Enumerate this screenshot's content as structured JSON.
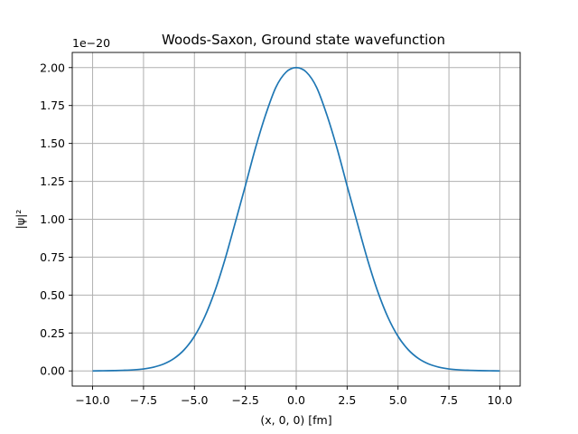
{
  "chart_data": {
    "type": "line",
    "title": "Woods-Saxon, Ground state wavefunction",
    "xlabel": "(x, 0, 0) [fm]",
    "ylabel": "|ψ|²",
    "offset_text": "1e−20",
    "xlim": [
      -11,
      11
    ],
    "ylim": [
      -0.1,
      2.1
    ],
    "grid": true,
    "xticks": [
      -10.0,
      -7.5,
      -5.0,
      -2.5,
      0.0,
      2.5,
      5.0,
      7.5,
      10.0
    ],
    "xtick_labels": [
      "−10.0",
      "−7.5",
      "−5.0",
      "−2.5",
      "0.0",
      "2.5",
      "5.0",
      "7.5",
      "10.0"
    ],
    "yticks": [
      0.0,
      0.25,
      0.5,
      0.75,
      1.0,
      1.25,
      1.5,
      1.75,
      2.0
    ],
    "ytick_labels": [
      "0.00",
      "0.25",
      "0.50",
      "0.75",
      "1.00",
      "1.25",
      "1.50",
      "1.75",
      "2.00"
    ],
    "series": [
      {
        "color": "#1f77b4",
        "x": [
          -10,
          -9.5,
          -9,
          -8.5,
          -8,
          -7.5,
          -7,
          -6.5,
          -6,
          -5.5,
          -5,
          -4.5,
          -4,
          -3.5,
          -3,
          -2.5,
          -2,
          -1.5,
          -1,
          -0.5,
          0,
          0.5,
          1,
          1.5,
          2,
          2.5,
          3,
          3.5,
          4,
          4.5,
          5,
          5.5,
          6,
          6.5,
          7,
          7.5,
          8,
          8.5,
          9,
          9.5,
          10
        ],
        "y": [
          0.0,
          0.001,
          0.002,
          0.004,
          0.007,
          0.013,
          0.025,
          0.046,
          0.082,
          0.14,
          0.228,
          0.355,
          0.525,
          0.735,
          0.975,
          1.22,
          1.47,
          1.69,
          1.87,
          1.97,
          2.0,
          1.97,
          1.87,
          1.69,
          1.47,
          1.22,
          0.975,
          0.735,
          0.525,
          0.355,
          0.228,
          0.14,
          0.082,
          0.046,
          0.025,
          0.013,
          0.007,
          0.004,
          0.002,
          0.001,
          0.0
        ]
      }
    ]
  }
}
